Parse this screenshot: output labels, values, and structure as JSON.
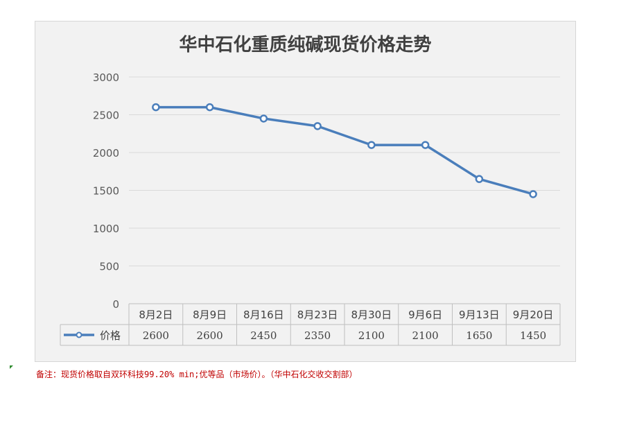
{
  "chart_data": {
    "type": "line",
    "title": "华中石化重质纯碱现货价格走势",
    "categories": [
      "8月2日",
      "8月9日",
      "8月16日",
      "8月23日",
      "8月30日",
      "9月6日",
      "9月13日",
      "9月20日"
    ],
    "series": [
      {
        "name": "价格",
        "values": [
          2600,
          2600,
          2450,
          2350,
          2100,
          2100,
          1650,
          1450
        ]
      }
    ],
    "yticks": [
      "0",
      "500",
      "1000",
      "1500",
      "2000",
      "2500",
      "3000"
    ],
    "ylim": [
      0,
      3000
    ],
    "grid": true,
    "legend": "data-table",
    "data_table": true,
    "colors": {
      "line": "#4a7ebb",
      "marker_fill": "#ffffff",
      "grid": "#d9d9d9",
      "table_border": "#bfbfbf"
    }
  },
  "note": "备注：现货价格取自双环科技99.20% min;优等品（市场价）。（华中石化交收交割部）"
}
